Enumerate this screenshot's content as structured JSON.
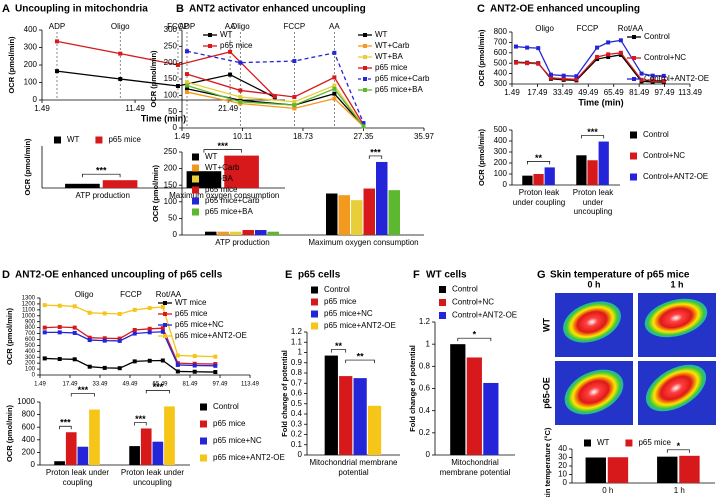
{
  "chart_data": [
    {
      "type": "line",
      "panel": "A",
      "title": "Uncoupling in mitochondria",
      "x": [
        3.1,
        9.9,
        16.1,
        21.7,
        26.5
      ],
      "xlim": [
        1.49,
        27.6
      ],
      "xticks": [
        1.49,
        11.49,
        21.49
      ],
      "ylim": [
        0,
        400
      ],
      "yticks": [
        0,
        100,
        200,
        300,
        400
      ],
      "xlabel": "Time (min)",
      "ylabel": "OCR (pmol/min)",
      "phases": [
        {
          "label": "ADP",
          "x": 3.1
        },
        {
          "label": "Oligo",
          "x": 9.9
        },
        {
          "label": "FCCP",
          "x": 16.1
        },
        {
          "label": "AA",
          "x": 21.7
        }
      ],
      "phase_lines": true,
      "legend": "top-right",
      "series": [
        {
          "name": "WT",
          "color": "#000000",
          "values": [
            165,
            120,
            80,
            145,
            15
          ]
        },
        {
          "name": "p65 mice",
          "color": "#d7191c",
          "values": [
            335,
            265,
            200,
            275,
            20
          ]
        }
      ]
    },
    {
      "type": "bar",
      "ylabel": "OCR (pmol/min)",
      "categories": [
        "ATP production",
        "Maximum oxygen consumption"
      ],
      "ylim": [
        0,
        350
      ],
      "legend": "top",
      "series": [
        {
          "name": "WT",
          "color": "#000000",
          "values": [
            35,
            140
          ]
        },
        {
          "name": "p65 mice",
          "color": "#d7191c",
          "values": [
            65,
            270
          ]
        }
      ],
      "significance": [
        "***",
        "***"
      ]
    },
    {
      "type": "line",
      "panel": "B",
      "title": "ANT2 activator enhanced uncoupling",
      "x": [
        2.2,
        9.8,
        17.5,
        23.2,
        27.35
      ],
      "xlim": [
        1.49,
        35.97
      ],
      "xticks": [
        1.49,
        10.11,
        18.73,
        27.35,
        35.97
      ],
      "ylim": [
        0,
        300
      ],
      "yticks": [
        0,
        50,
        100,
        150,
        200,
        250,
        300
      ],
      "ylabel": "OCR (pmol/min)",
      "phases": [
        {
          "label": "ADP",
          "x": 2.2
        },
        {
          "label": "Oligo",
          "x": 9.8
        },
        {
          "label": "FCCP",
          "x": 17.5
        },
        {
          "label": "AA",
          "x": 23.2
        }
      ],
      "phase_lines": true,
      "legend": "top-right",
      "series": [
        {
          "name": "WT",
          "color": "#000000",
          "values": [
            120,
            85,
            70,
            105,
            5
          ]
        },
        {
          "name": "WT+Carb",
          "color": "#f39a1e",
          "values": [
            110,
            75,
            60,
            90,
            5
          ]
        },
        {
          "name": "WT+BA",
          "color": "#e8cf3a",
          "values": [
            140,
            95,
            80,
            130,
            5
          ]
        },
        {
          "name": "p65 mice",
          "color": "#d7191c",
          "values": [
            165,
            115,
            95,
            155,
            10
          ]
        },
        {
          "name": "p65 mice+Carb",
          "color": "#2424d8",
          "dashed": true,
          "values": [
            235,
            200,
            205,
            230,
            15
          ]
        },
        {
          "name": "p65 mice+BA",
          "color": "#5cb82e",
          "values": [
            130,
            80,
            70,
            120,
            5
          ]
        }
      ]
    },
    {
      "type": "bar",
      "ylabel": "OCR (pmol/min)",
      "categories": [
        "ATP production",
        "Maximum oxygen consumption"
      ],
      "ylim": [
        0,
        250
      ],
      "yticks": [
        0,
        50,
        100,
        150,
        200,
        250
      ],
      "legend": "top-left",
      "series": [
        {
          "name": "WT",
          "color": "#000000",
          "values": [
            10,
            125
          ]
        },
        {
          "name": "WT+Carb",
          "color": "#f39a1e",
          "values": [
            10,
            120
          ]
        },
        {
          "name": "WT+BA",
          "color": "#e8cf3a",
          "values": [
            10,
            105
          ]
        },
        {
          "name": "p65 mice",
          "color": "#d7191c",
          "values": [
            15,
            140
          ]
        },
        {
          "name": "p65 mice+Carb",
          "color": "#2424d8",
          "values": [
            15,
            220
          ]
        },
        {
          "name": "p65 mice+BA",
          "color": "#5cb82e",
          "values": [
            10,
            135
          ]
        }
      ],
      "significance": [
        "***"
      ]
    },
    {
      "type": "line",
      "panel": "C",
      "title": "ANT2-OE enhanced uncoupling",
      "x": [
        4,
        11,
        18,
        26,
        34,
        42,
        55,
        62,
        70,
        83,
        90,
        97
      ],
      "xlim": [
        1.49,
        113.49
      ],
      "xticks": [
        1.49,
        17.49,
        33.49,
        49.49,
        65.49,
        81.49,
        97.49,
        113.49
      ],
      "ylim": [
        300,
        800
      ],
      "yticks": [
        300,
        400,
        500,
        600,
        700,
        800
      ],
      "xlabel": "Time (min)",
      "ylabel": "OCR (pmol/min)",
      "phases": [
        {
          "label": "Oligo",
          "x": 22
        },
        {
          "label": "FCCP",
          "x": 49
        },
        {
          "label": "Rot/AA",
          "x": 76
        }
      ],
      "phase_lines": false,
      "legend": "top-right",
      "series": [
        {
          "name": "Control",
          "color": "#000000",
          "values": [
            510,
            505,
            500,
            350,
            340,
            335,
            540,
            560,
            580,
            325,
            320,
            318
          ]
        },
        {
          "name": "Control+NC",
          "color": "#d7191c",
          "values": [
            505,
            500,
            495,
            360,
            350,
            345,
            560,
            585,
            600,
            340,
            335,
            330
          ]
        },
        {
          "name": "Control+ANT2-OE",
          "color": "#2424d8",
          "values": [
            660,
            650,
            645,
            390,
            380,
            375,
            650,
            700,
            720,
            400,
            380,
            378
          ]
        }
      ]
    },
    {
      "type": "bar",
      "ylabel": "OCR (pmol/min)",
      "categories": [
        "Proton leak under coupling",
        "Proton leak under uncoupling"
      ],
      "ylim": [
        0,
        500
      ],
      "yticks": [
        0,
        100,
        200,
        300,
        400,
        500
      ],
      "legend": "right",
      "series": [
        {
          "name": "Control",
          "color": "#000000",
          "values": [
            85,
            270
          ]
        },
        {
          "name": "Control+NC",
          "color": "#d7191c",
          "values": [
            100,
            225
          ]
        },
        {
          "name": "Control+ANT2-OE",
          "color": "#2424d8",
          "values": [
            160,
            395
          ]
        }
      ],
      "significance": [
        "**",
        "***"
      ]
    },
    {
      "type": "line",
      "panel": "D",
      "title": "ANT2-OE enhanced uncoupling of p65 cells",
      "x": [
        4,
        12,
        20,
        28,
        36,
        44,
        52,
        60,
        67,
        75,
        84,
        95
      ],
      "xlim": [
        1.49,
        113.49
      ],
      "xticks": [
        1.49,
        17.49,
        33.49,
        49.49,
        65.49,
        81.49,
        97.49,
        113.49
      ],
      "ylim": [
        0,
        1300
      ],
      "yticks": [
        0,
        100,
        200,
        300,
        400,
        500,
        600,
        700,
        800,
        900,
        1000,
        1100,
        1200,
        1300
      ],
      "ylabel": "OCR (pmol/min)",
      "phases": [
        {
          "label": "Oligo",
          "x": 25
        },
        {
          "label": "FCCP",
          "x": 50
        },
        {
          "label": "Rot/AA",
          "x": 70
        }
      ],
      "phase_lines": false,
      "legend": "top-right",
      "series": [
        {
          "name": "WT mice",
          "color": "#000000",
          "values": [
            280,
            270,
            265,
            140,
            120,
            115,
            230,
            240,
            245,
            60,
            55,
            50
          ]
        },
        {
          "name": "p65 mice",
          "color": "#d7191c",
          "values": [
            800,
            810,
            800,
            630,
            620,
            615,
            760,
            780,
            790,
            200,
            190,
            185
          ]
        },
        {
          "name": "p65 mice+NC",
          "color": "#2424d8",
          "values": [
            720,
            720,
            710,
            590,
            580,
            575,
            700,
            720,
            730,
            170,
            160,
            155
          ]
        },
        {
          "name": "p65 mice+ANT2-OE",
          "color": "#f5c518",
          "values": [
            1180,
            1170,
            1160,
            1050,
            1040,
            1030,
            1100,
            1130,
            1150,
            330,
            320,
            310
          ]
        }
      ]
    },
    {
      "type": "bar",
      "ylabel": "OCR (pmol/min)",
      "categories": [
        "Proton leak under coupling",
        "Proton leak under uncoupling"
      ],
      "ylim": [
        0,
        1000
      ],
      "yticks": [
        0,
        200,
        400,
        600,
        800,
        1000
      ],
      "legend": "right",
      "series": [
        {
          "name": "Control",
          "color": "#000000",
          "values": [
            60,
            300
          ]
        },
        {
          "name": "p65 mice",
          "color": "#d7191c",
          "values": [
            520,
            580
          ]
        },
        {
          "name": "p65 mice+NC",
          "color": "#2424d8",
          "values": [
            290,
            370
          ]
        },
        {
          "name": "p65 mice+ANT2-OE",
          "color": "#f5c518",
          "values": [
            880,
            930
          ]
        }
      ],
      "significance": [
        "***",
        "***",
        "***",
        "***"
      ]
    },
    {
      "type": "bar",
      "panel": "E",
      "title": "p65 cells",
      "ylabel": "Fold change of potential",
      "categories": [
        "Mitochondrial membrane potential"
      ],
      "ylim": [
        0,
        1.2
      ],
      "yticks": [
        0,
        0.1,
        0.2,
        0.3,
        0.4,
        0.5,
        0.6,
        0.7,
        0.8,
        0.9,
        1,
        1.1,
        1.2
      ],
      "legend": "above",
      "series": [
        {
          "name": "Control",
          "color": "#000000",
          "values": [
            0.97
          ]
        },
        {
          "name": "p65 mice",
          "color": "#d7191c",
          "values": [
            0.77
          ]
        },
        {
          "name": "p65 mice+NC",
          "color": "#2424d8",
          "values": [
            0.75
          ]
        },
        {
          "name": "p65 mice+ANT2-OE",
          "color": "#f5c518",
          "values": [
            0.48
          ]
        }
      ],
      "significance": [
        "**",
        "**"
      ]
    },
    {
      "type": "bar",
      "panel": "F",
      "title": "WT cells",
      "ylabel": "Fold change of potential",
      "categories": [
        "Mitochondrial membrane potential"
      ],
      "ylim": [
        0,
        1.2
      ],
      "yticks": [
        0,
        0.2,
        0.4,
        0.6,
        0.8,
        1,
        1.2
      ],
      "legend": "above",
      "series": [
        {
          "name": "Control",
          "color": "#000000",
          "values": [
            1
          ]
        },
        {
          "name": "Control+NC",
          "color": "#d7191c",
          "values": [
            0.88
          ]
        },
        {
          "name": "Control+ANT2-OE",
          "color": "#2424d8",
          "values": [
            0.65
          ]
        }
      ],
      "significance": [
        "*"
      ]
    },
    {
      "type": "bar",
      "panel": "G",
      "title": "Skin temperature of p65 mice",
      "ylabel": "Skin temperature (°C)",
      "categories": [
        "0 h",
        "1 h"
      ],
      "ylim": [
        0,
        40
      ],
      "yticks": [
        0,
        10,
        20,
        30,
        40
      ],
      "legend": "top",
      "series": [
        {
          "name": "WT",
          "color": "#000000",
          "values": [
            30,
            31
          ]
        },
        {
          "name": "p65 mice",
          "color": "#d7191c",
          "values": [
            30.3,
            32
          ]
        }
      ],
      "significance": [
        "*"
      ]
    }
  ],
  "thermal_images": {
    "columns": [
      "0 h",
      "1 h"
    ],
    "rows": [
      "WT",
      "p65-OE"
    ]
  }
}
